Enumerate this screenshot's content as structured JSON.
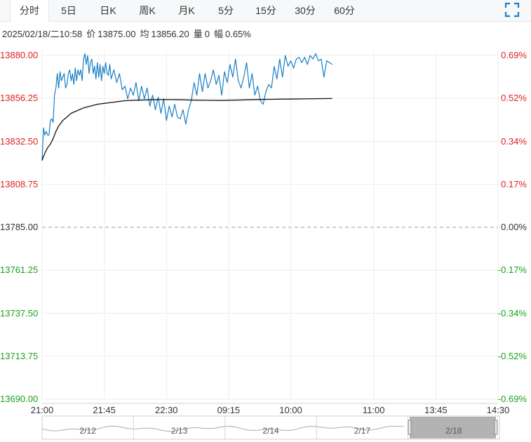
{
  "tabs": [
    "分时",
    "5日",
    "日K",
    "周K",
    "月K",
    "5分",
    "15分",
    "30分",
    "60分"
  ],
  "active_tab": "分时",
  "info": {
    "datetime": "2025/02/18/二10:58",
    "price_label": "价",
    "price": "13875.00",
    "avg_label": "均",
    "avg": "13856.20",
    "volume_label": "量",
    "volume": "0",
    "change_label": "幅",
    "change": "0.65%"
  },
  "colors": {
    "up": "#e02020",
    "down": "#1aa11a",
    "price_line": "#1a7fc4",
    "avg_line": "#111111",
    "neutral": "#333333"
  },
  "chart_data": {
    "type": "line",
    "title": "",
    "xlabel": "",
    "ylabel": "",
    "prev_close": 13785.0,
    "ylim": [
      13690.0,
      13880.0
    ],
    "left_ticks": [
      "13880.00",
      "13856.25",
      "13832.50",
      "13808.75",
      "13785.00",
      "13761.25",
      "13737.50",
      "13713.75",
      "13690.00"
    ],
    "right_ticks": [
      "0.69%",
      "0.52%",
      "0.34%",
      "0.17%",
      "0.00%",
      "-0.17%",
      "-0.34%",
      "-0.52%",
      "-0.69%"
    ],
    "x_ticks": [
      "21:00",
      "21:45",
      "22:30",
      "09:15",
      "10:00",
      "11:00",
      "13:45",
      "14:30"
    ],
    "x_tick_minutes": [
      0,
      45,
      90,
      135,
      180,
      240,
      285,
      330
    ],
    "x_max_minutes": 330,
    "series": [
      {
        "role": "price",
        "x": [
          0,
          1,
          2,
          3,
          4,
          5,
          6,
          7,
          8,
          9,
          10,
          11,
          12,
          13,
          14,
          15,
          16,
          17,
          18,
          19,
          20,
          21,
          22,
          23,
          24,
          25,
          26,
          27,
          28,
          29,
          30,
          31,
          32,
          33,
          34,
          35,
          36,
          37,
          38,
          39,
          40,
          41,
          42,
          43,
          44,
          45,
          46,
          47,
          48,
          49,
          50,
          52,
          54,
          56,
          58,
          60,
          62,
          64,
          66,
          68,
          70,
          72,
          74,
          76,
          78,
          80,
          82,
          84,
          86,
          88,
          90,
          92,
          94,
          96,
          98,
          100,
          102,
          104,
          106,
          108,
          110,
          112,
          114,
          116,
          118,
          120,
          122,
          124,
          126,
          128,
          130,
          132,
          134,
          136,
          138,
          140,
          142,
          144,
          146,
          148,
          150,
          152,
          154,
          156,
          158,
          160,
          162,
          164,
          166,
          168,
          170,
          172,
          174,
          176,
          178,
          180,
          182,
          184,
          186,
          188,
          190,
          192,
          194,
          196,
          198,
          200,
          202,
          204,
          206,
          208,
          210
        ],
        "values": [
          13822,
          13840,
          13836,
          13838,
          13836,
          13836,
          13844,
          13845,
          13843,
          13858,
          13862,
          13870,
          13862,
          13871,
          13866,
          13868,
          13870,
          13862,
          13864,
          13870,
          13872,
          13866,
          13870,
          13864,
          13873,
          13866,
          13872,
          13869,
          13872,
          13866,
          13878,
          13881,
          13875,
          13880,
          13870,
          13876,
          13878,
          13870,
          13874,
          13867,
          13876,
          13868,
          13875,
          13866,
          13874,
          13870,
          13876,
          13870,
          13869,
          13875,
          13867,
          13872,
          13865,
          13870,
          13861,
          13863,
          13856,
          13862,
          13858,
          13865,
          13855,
          13863,
          13856,
          13862,
          13852,
          13858,
          13850,
          13857,
          13848,
          13856,
          13844,
          13852,
          13846,
          13853,
          13846,
          13845,
          13850,
          13842,
          13850,
          13855,
          13865,
          13858,
          13870,
          13860,
          13870,
          13862,
          13866,
          13872,
          13864,
          13869,
          13858,
          13871,
          13865,
          13875,
          13868,
          13878,
          13866,
          13862,
          13868,
          13876,
          13862,
          13870,
          13858,
          13863,
          13855,
          13853,
          13860,
          13864,
          13862,
          13874,
          13867,
          13878,
          13868,
          13880,
          13874,
          13877,
          13873,
          13878,
          13879,
          13876,
          13879,
          13875,
          13880,
          13878,
          13881,
          13877,
          13878,
          13868,
          13877,
          13876,
          13875
        ]
      },
      {
        "role": "average",
        "x": [
          0,
          2,
          4,
          6,
          8,
          10,
          12,
          15,
          18,
          21,
          24,
          27,
          30,
          35,
          40,
          45,
          50,
          55,
          60,
          70,
          80,
          90,
          100,
          110,
          120,
          130,
          140,
          150,
          160,
          170,
          180,
          190,
          200,
          210
        ],
        "values": [
          13822,
          13826,
          13829,
          13831,
          13834,
          13838,
          13841,
          13844,
          13846,
          13848,
          13849,
          13850,
          13851,
          13852,
          13853,
          13853.5,
          13854,
          13854.5,
          13855,
          13855.3,
          13855.5,
          13855.6,
          13855.5,
          13855.3,
          13855.2,
          13855.1,
          13855.3,
          13855.5,
          13855.7,
          13855.8,
          13855.9,
          13856.0,
          13856.1,
          13856.2
        ]
      }
    ]
  },
  "navigator": {
    "dates": [
      "2/12",
      "2/13",
      "2/14",
      "2/17",
      "2/18"
    ]
  }
}
